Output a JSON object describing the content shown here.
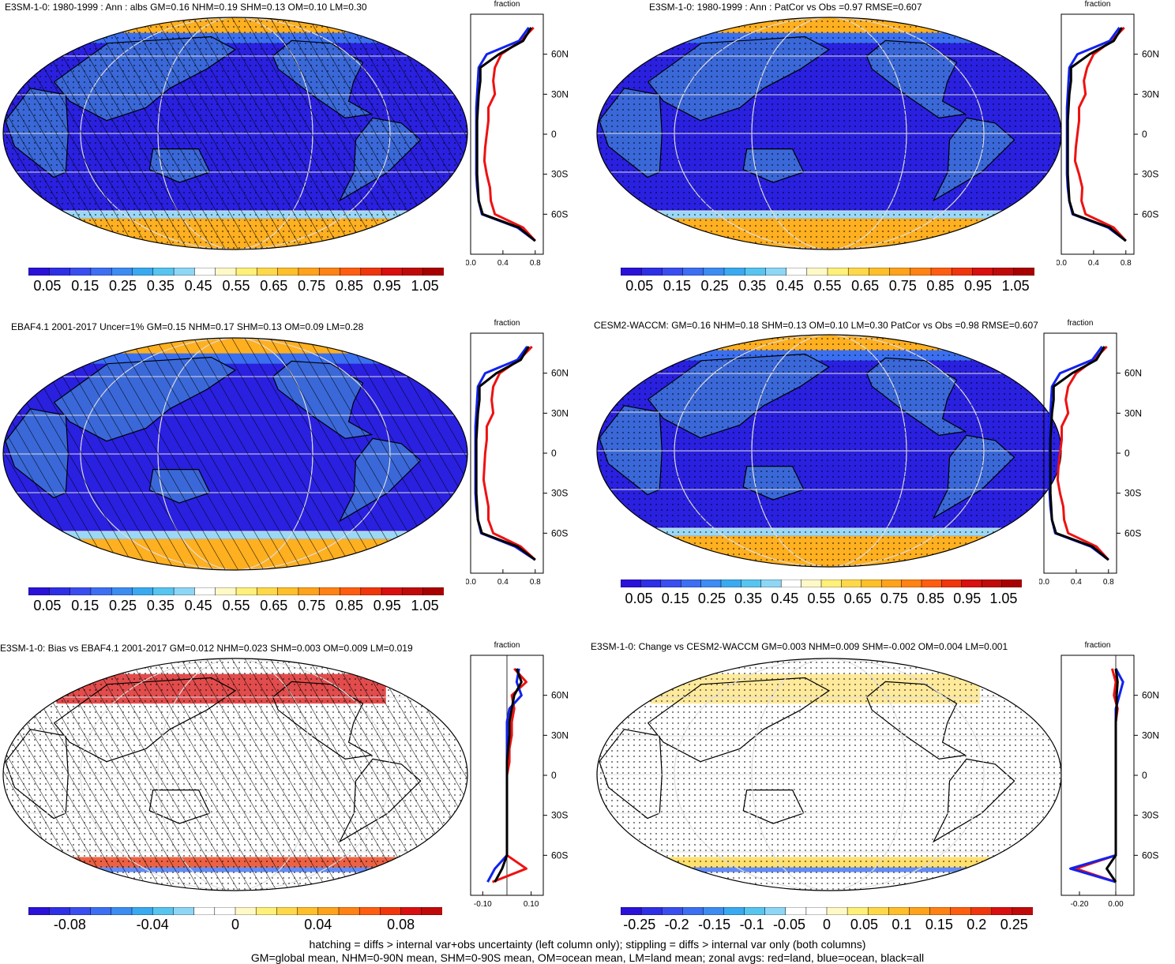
{
  "panels": [
    {
      "title": "E3SM-1-0: 1980-1999 : Ann : albs GM=0.16 NHM=0.19 SHM=0.13 OM=0.10 LM=0.30",
      "type": "abs",
      "hatch": true,
      "stipple": true
    },
    {
      "title": "E3SM-1-0: 1980-1999 : Ann : PatCor vs Obs =0.97 RMSE=0.607",
      "type": "abs",
      "hatch": false,
      "stipple": true
    },
    {
      "title": "EBAF4.1 2001-2017 Uncer=1% GM=0.15 NHM=0.17 SHM=0.13 OM=0.09 LM=0.28",
      "type": "abs",
      "hatch": true,
      "stipple": false
    },
    {
      "title": "CESM2-WACCM: GM=0.16 NHM=0.18 SHM=0.13 OM=0.10 LM=0.30 PatCor vs Obs =0.98 RMSE=0.607",
      "type": "abs",
      "hatch": false,
      "stipple": true
    },
    {
      "title": "E3SM-1-0: Bias vs EBAF4.1 2001-2017 GM=0.012 NHM=0.023 SHM=0.003 OM=0.009 LM=0.019",
      "type": "diff",
      "hatch": true,
      "stipple": true
    },
    {
      "title": "E3SM-1-0: Change vs CESM2-WACCM GM=0.003 NHM=0.009 SHM=-0.002 OM=0.004 LM=0.001",
      "type": "diff",
      "hatch": false,
      "stipple": true
    }
  ],
  "zonal_axis": {
    "title": "fraction",
    "lat_labels": [
      "60N",
      "30N",
      "0",
      "30S",
      "60S"
    ],
    "abs_ticks": [
      "0.0",
      "0.4",
      "0.8"
    ],
    "bias_ticks": [
      "-0.10",
      "0.10"
    ],
    "change_ticks": [
      "-0.20",
      "0.00"
    ]
  },
  "colorbars": {
    "abs": {
      "labels": [
        "0.05",
        "0.15",
        "0.25",
        "0.35",
        "0.45",
        "0.55",
        "0.65",
        "0.75",
        "0.85",
        "0.95",
        "1.05"
      ],
      "colors": [
        "#2a12d8",
        "#2f2fe6",
        "#3a4ef0",
        "#3d6ff2",
        "#3d8cf2",
        "#3aaaf0",
        "#58c4f0",
        "#8ed6f5",
        "#ffffff",
        "#fff9c8",
        "#fff07a",
        "#ffd84a",
        "#ffbf2a",
        "#ffa21c",
        "#ff8214",
        "#ff5e10",
        "#f0360c",
        "#d81010",
        "#c00a0a",
        "#a80000"
      ]
    },
    "bias": {
      "labels": [
        "-0.08",
        "-0.04",
        "0",
        "0.04",
        "0.08"
      ],
      "colors": [
        "#2a12d8",
        "#2f2fe6",
        "#3a4ef0",
        "#3d6ff2",
        "#3d8cf2",
        "#3aaaf0",
        "#58c4f0",
        "#8ed6f5",
        "#ffffff",
        "#ffffff",
        "#fff9c8",
        "#fff07a",
        "#ffd84a",
        "#ffbf2a",
        "#ffa21c",
        "#ff8214",
        "#ff5e10",
        "#f0360c",
        "#d81010",
        "#c00a0a"
      ]
    },
    "change": {
      "labels": [
        "-0.25",
        "-0.2",
        "-0.15",
        "-0.1",
        "-0.05",
        "0",
        "0.05",
        "0.1",
        "0.15",
        "0.2",
        "0.25"
      ],
      "colors": [
        "#2a12d8",
        "#2f2fe6",
        "#3a4ef0",
        "#3d6ff2",
        "#3d8cf2",
        "#3aaaf0",
        "#58c4f0",
        "#8ed6f5",
        "#ffffff",
        "#ffffff",
        "#fff9c8",
        "#fff07a",
        "#ffd84a",
        "#ffbf2a",
        "#ffa21c",
        "#ff8214",
        "#ff5e10",
        "#f0360c",
        "#d81010",
        "#c00a0a"
      ]
    }
  },
  "footer": {
    "line1": "hatching = diffs > internal var+obs uncertainty (left column only); stippling = diffs > internal var only (both columns)",
    "line2": "GM=global mean, NHM=0-90N mean, SHM=0-90S mean, OM=ocean mean, LM=land mean; zonal avgs: red=land, blue=ocean, black=all"
  },
  "chart_data": [
    {
      "type": "heatmap",
      "title": "E3SM-1-0: 1980-1999 : Ann : albs GM=0.16 NHM=0.19 SHM=0.13 OM=0.10 LM=0.30",
      "zonal_xlim": [
        0,
        0.9
      ],
      "zonal_lat": [
        80,
        70,
        60,
        50,
        40,
        30,
        20,
        10,
        0,
        -10,
        -20,
        -30,
        -40,
        -50,
        -60,
        -70,
        -80
      ],
      "zonal_all": [
        0.75,
        0.65,
        0.35,
        0.12,
        0.12,
        0.1,
        0.09,
        0.08,
        0.08,
        0.08,
        0.08,
        0.08,
        0.09,
        0.1,
        0.15,
        0.6,
        0.8
      ],
      "zonal_land": [
        0.78,
        0.62,
        0.38,
        0.3,
        0.28,
        0.3,
        0.22,
        0.22,
        0.2,
        0.18,
        0.17,
        0.2,
        0.24,
        0.25,
        0.3,
        0.65,
        0.8
      ],
      "zonal_ocean": [
        0.72,
        0.6,
        0.2,
        0.1,
        0.09,
        0.08,
        0.07,
        0.07,
        0.07,
        0.07,
        0.07,
        0.07,
        0.08,
        0.1,
        0.14,
        0.58,
        0.8
      ]
    },
    {
      "type": "heatmap",
      "title": "E3SM-1-0: 1980-1999 : Ann : PatCor vs Obs =0.97 RMSE=0.607",
      "zonal_xlim": [
        0,
        0.9
      ],
      "zonal_lat": [
        80,
        70,
        60,
        50,
        40,
        30,
        20,
        10,
        0,
        -10,
        -20,
        -30,
        -40,
        -50,
        -60,
        -70,
        -80
      ],
      "zonal_all": [
        0.75,
        0.65,
        0.35,
        0.12,
        0.12,
        0.1,
        0.09,
        0.08,
        0.08,
        0.08,
        0.08,
        0.08,
        0.09,
        0.1,
        0.15,
        0.6,
        0.8
      ],
      "zonal_land": [
        0.78,
        0.62,
        0.4,
        0.32,
        0.28,
        0.3,
        0.22,
        0.22,
        0.2,
        0.18,
        0.17,
        0.22,
        0.26,
        0.25,
        0.3,
        0.65,
        0.8
      ],
      "zonal_ocean": [
        0.72,
        0.6,
        0.2,
        0.1,
        0.09,
        0.08,
        0.07,
        0.07,
        0.07,
        0.07,
        0.07,
        0.07,
        0.08,
        0.1,
        0.14,
        0.58,
        0.8
      ]
    },
    {
      "type": "heatmap",
      "title": "EBAF4.1 2001-2017 Uncer=1% GM=0.15 NHM=0.17 SHM=0.13 OM=0.09 LM=0.28",
      "zonal_xlim": [
        0,
        0.9
      ],
      "zonal_lat": [
        80,
        70,
        60,
        50,
        40,
        30,
        20,
        10,
        0,
        -10,
        -20,
        -30,
        -40,
        -50,
        -60,
        -70,
        -80
      ],
      "zonal_all": [
        0.72,
        0.62,
        0.32,
        0.11,
        0.11,
        0.09,
        0.08,
        0.07,
        0.07,
        0.07,
        0.07,
        0.07,
        0.08,
        0.09,
        0.14,
        0.58,
        0.8
      ],
      "zonal_land": [
        0.76,
        0.6,
        0.36,
        0.28,
        0.26,
        0.28,
        0.2,
        0.2,
        0.18,
        0.17,
        0.16,
        0.19,
        0.22,
        0.22,
        0.28,
        0.62,
        0.8
      ],
      "zonal_ocean": [
        0.7,
        0.58,
        0.18,
        0.09,
        0.08,
        0.07,
        0.06,
        0.06,
        0.06,
        0.06,
        0.06,
        0.06,
        0.07,
        0.09,
        0.13,
        0.55,
        0.8
      ]
    },
    {
      "type": "heatmap",
      "title": "CESM2-WACCM: GM=0.16 NHM=0.18 SHM=0.13 OM=0.10 LM=0.30 PatCor vs Obs =0.98 RMSE=0.607",
      "zonal_xlim": [
        0,
        0.9
      ],
      "zonal_lat": [
        80,
        70,
        60,
        50,
        40,
        30,
        20,
        10,
        0,
        -10,
        -20,
        -30,
        -40,
        -50,
        -60,
        -70,
        -80
      ],
      "zonal_all": [
        0.75,
        0.65,
        0.35,
        0.12,
        0.12,
        0.1,
        0.09,
        0.08,
        0.08,
        0.08,
        0.08,
        0.08,
        0.09,
        0.1,
        0.15,
        0.6,
        0.8
      ],
      "zonal_land": [
        0.78,
        0.62,
        0.4,
        0.3,
        0.27,
        0.3,
        0.22,
        0.22,
        0.2,
        0.18,
        0.17,
        0.2,
        0.24,
        0.25,
        0.3,
        0.65,
        0.8
      ],
      "zonal_ocean": [
        0.72,
        0.6,
        0.2,
        0.1,
        0.09,
        0.08,
        0.07,
        0.07,
        0.07,
        0.07,
        0.07,
        0.07,
        0.08,
        0.1,
        0.14,
        0.58,
        0.8
      ]
    },
    {
      "type": "heatmap",
      "title": "E3SM-1-0: Bias vs EBAF4.1 2001-2017 GM=0.012 NHM=0.023 SHM=0.003 OM=0.009 LM=0.019",
      "zonal_xlim": [
        -0.15,
        0.15
      ],
      "zonal_lat": [
        80,
        70,
        60,
        50,
        40,
        30,
        20,
        10,
        0,
        -10,
        -20,
        -30,
        -40,
        -50,
        -60,
        -70,
        -80
      ],
      "zonal_all": [
        0.04,
        0.06,
        0.03,
        0.02,
        0.01,
        0.01,
        0.005,
        0.0,
        0.0,
        0.0,
        0.0,
        0.0,
        0.0,
        0.0,
        0.0,
        -0.02,
        -0.05
      ],
      "zonal_land": [
        0.03,
        0.08,
        0.02,
        0.03,
        0.02,
        0.02,
        0.01,
        0.01,
        0.0,
        0.0,
        0.0,
        0.0,
        0.0,
        0.0,
        0.0,
        0.08,
        -0.06
      ],
      "zonal_ocean": [
        0.05,
        0.04,
        0.06,
        0.01,
        0.0,
        0.0,
        0.0,
        0.0,
        0.0,
        0.0,
        0.0,
        0.0,
        0.0,
        0.0,
        0.0,
        -0.05,
        -0.08
      ]
    },
    {
      "type": "heatmap",
      "title": "E3SM-1-0: Change vs CESM2-WACCM GM=0.003 NHM=0.009 SHM=-0.002 OM=0.004 LM=0.001",
      "zonal_xlim": [
        -0.3,
        0.1
      ],
      "zonal_lat": [
        80,
        70,
        60,
        50,
        40,
        30,
        20,
        10,
        0,
        -10,
        -20,
        -30,
        -40,
        -50,
        -60,
        -70,
        -80
      ],
      "zonal_all": [
        0.0,
        0.01,
        0.005,
        0.005,
        0.0,
        0.0,
        0.0,
        0.0,
        0.0,
        0.0,
        0.0,
        0.0,
        0.0,
        0.0,
        0.0,
        -0.05,
        0.0
      ],
      "zonal_land": [
        -0.02,
        0.0,
        -0.01,
        0.01,
        0.0,
        0.0,
        0.0,
        0.0,
        0.0,
        0.0,
        0.0,
        0.0,
        0.0,
        0.0,
        0.0,
        -0.22,
        0.0
      ],
      "zonal_ocean": [
        0.0,
        0.04,
        0.02,
        0.0,
        0.0,
        0.0,
        0.0,
        0.0,
        0.0,
        0.0,
        0.0,
        0.0,
        0.0,
        0.0,
        0.0,
        -0.25,
        0.0
      ]
    }
  ]
}
